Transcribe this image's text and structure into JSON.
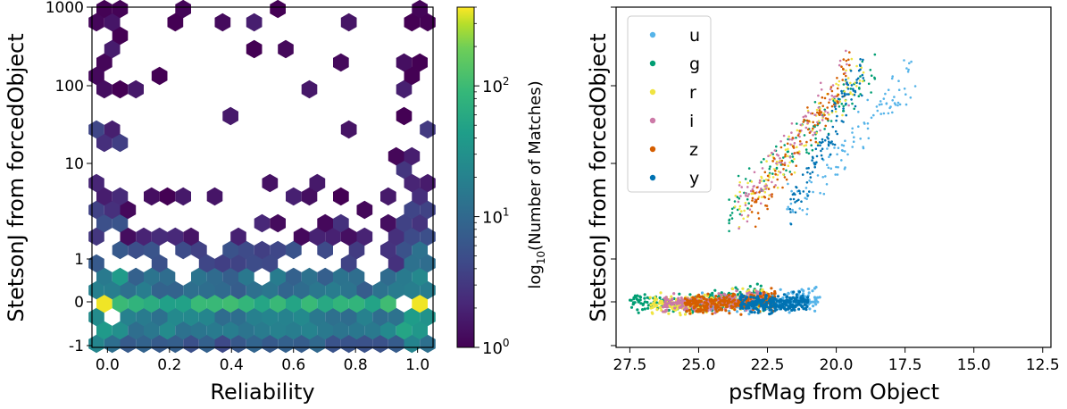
{
  "colors": {
    "u": "#56b4e9",
    "g": "#009e73",
    "r": "#f0e442",
    "i": "#cc79a7",
    "z": "#d55e00",
    "y": "#0072b2"
  },
  "chart_data": [
    {
      "type": "heatmap",
      "subtype": "hexbin",
      "xlabel": "Reliability",
      "ylabel": "StetsonJ from forcedObject",
      "xlim": [
        -0.05,
        1.05
      ],
      "x_ticks": [
        "0.0",
        "0.2",
        "0.4",
        "0.6",
        "0.8",
        "1.0"
      ],
      "y_scale": "symlog",
      "y_ticks": [
        "-1",
        "0",
        "1",
        "10",
        "100",
        "1000"
      ],
      "colorbar": {
        "label_prefix": "log",
        "label_sub": "10",
        "label_suffix": "(Number of Matches)",
        "scale": "log",
        "range": [
          1,
          400
        ],
        "ticks": [
          {
            "base": "10",
            "exp": "0",
            "value": 1
          },
          {
            "base": "10",
            "exp": "1",
            "value": 10
          },
          {
            "base": "10",
            "exp": "2",
            "value": 100
          }
        ]
      },
      "description_bins": "hex bins of match counts; dense band near StetsonJ 0, sparse above 10"
    },
    {
      "type": "scatter",
      "xlabel": "psfMag from Object",
      "ylabel": "StetsonJ from forcedObject",
      "x_inverted": true,
      "xlim": [
        28.0,
        12.2
      ],
      "x_ticks": [
        "27.5",
        "25.0",
        "22.5",
        "20.0",
        "17.5",
        "15.0",
        "12.5"
      ],
      "legend": {
        "position": "upper-left",
        "entries": [
          "u",
          "g",
          "r",
          "i",
          "z",
          "y"
        ]
      },
      "series": [
        {
          "name": "u",
          "mag_range": [
            17.0,
            25.0
          ]
        },
        {
          "name": "g",
          "mag_range": [
            18.5,
            27.5
          ]
        },
        {
          "name": "r",
          "mag_range": [
            19.0,
            26.8
          ]
        },
        {
          "name": "i",
          "mag_range": [
            19.5,
            26.3
          ]
        },
        {
          "name": "z",
          "mag_range": [
            19.5,
            25.5
          ]
        },
        {
          "name": "y",
          "mag_range": [
            19.0,
            23.5
          ]
        }
      ]
    }
  ]
}
